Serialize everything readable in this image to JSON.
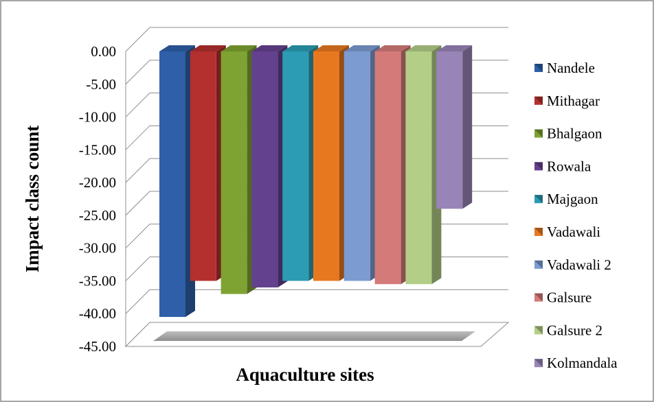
{
  "chart_data": {
    "type": "bar",
    "title": "",
    "xlabel": "Aquaculture sites",
    "ylabel": "Impact class count",
    "ylim": [
      -45,
      0
    ],
    "y_ticks": [
      "0.00",
      "-5.00",
      "-10.00",
      "-15.00",
      "-20.00",
      "-25.00",
      "-30.00",
      "-35.00",
      "-40.00",
      "-45.00"
    ],
    "grid": true,
    "legend_position": "right",
    "series": [
      {
        "name": "Nandele",
        "value": -40.5,
        "color": "#2e5fa8"
      },
      {
        "name": "Mithagar",
        "value": -35.0,
        "color": "#b3302e"
      },
      {
        "name": "Bhalgaon",
        "value": -37.0,
        "color": "#7ea333"
      },
      {
        "name": "Rowala",
        "value": -36.0,
        "color": "#64418f"
      },
      {
        "name": "Majgaon",
        "value": -35.0,
        "color": "#2b9cb3"
      },
      {
        "name": "Vadawali",
        "value": -35.0,
        "color": "#e8781f"
      },
      {
        "name": "Vadawali 2",
        "value": -35.0,
        "color": "#7b9bd1"
      },
      {
        "name": "Galsure",
        "value": -35.5,
        "color": "#d47b7a"
      },
      {
        "name": "Galsure 2",
        "value": -35.5,
        "color": "#b3ce86"
      },
      {
        "name": "Kolmandala",
        "value": -24.0,
        "color": "#9884b7"
      }
    ]
  }
}
